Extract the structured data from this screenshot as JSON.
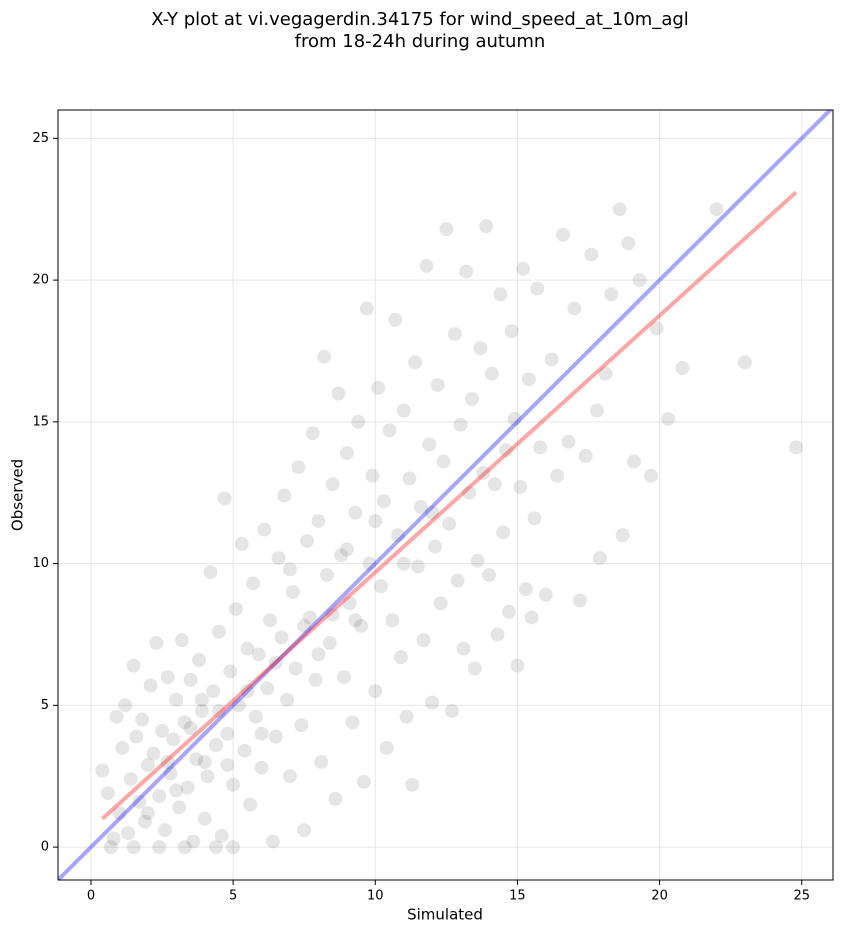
{
  "chart_data": {
    "type": "scatter",
    "title": [
      "X-Y plot at vi.vegagerdin.34175 for wind_speed_at_10m_agl",
      "from 18-24h during autumn"
    ],
    "xlabel": "Simulated",
    "ylabel": "Observed",
    "xlim": [
      -1.16,
      26.1
    ],
    "ylim": [
      -1.16,
      26.0
    ],
    "xticks": [
      0,
      5,
      10,
      15,
      20,
      25
    ],
    "yticks": [
      0,
      5,
      10,
      15,
      20,
      25
    ],
    "grid": true,
    "color": "#000000",
    "x": [
      0.4,
      0.6,
      0.8,
      0.9,
      1.0,
      1.1,
      1.2,
      1.3,
      1.4,
      1.5,
      1.6,
      1.7,
      1.8,
      1.9,
      2.0,
      2.1,
      2.2,
      2.3,
      2.4,
      2.5,
      2.6,
      2.7,
      2.8,
      2.9,
      3.0,
      3.1,
      3.2,
      3.3,
      3.4,
      3.5,
      3.6,
      3.7,
      3.8,
      3.9,
      4.0,
      4.1,
      4.2,
      4.3,
      4.4,
      4.5,
      4.6,
      4.7,
      4.8,
      4.9,
      5.0,
      5.1,
      5.2,
      5.3,
      5.4,
      5.5,
      5.6,
      5.7,
      5.8,
      5.9,
      6.0,
      6.1,
      6.2,
      6.3,
      6.4,
      6.5,
      6.6,
      6.7,
      6.8,
      6.9,
      7.0,
      7.1,
      7.2,
      7.3,
      7.4,
      7.5,
      7.6,
      7.7,
      7.8,
      7.9,
      8.0,
      8.1,
      8.2,
      8.3,
      8.4,
      8.5,
      8.6,
      8.7,
      8.8,
      8.9,
      9.0,
      9.1,
      9.2,
      9.3,
      9.4,
      9.5,
      9.6,
      9.7,
      9.8,
      9.9,
      10.0,
      10.1,
      10.2,
      10.3,
      10.4,
      10.5,
      10.6,
      10.7,
      10.8,
      10.9,
      11.0,
      11.1,
      11.2,
      11.3,
      11.4,
      11.5,
      11.6,
      11.7,
      11.8,
      11.9,
      12.0,
      12.1,
      12.2,
      12.3,
      12.4,
      12.5,
      12.6,
      12.7,
      12.8,
      12.9,
      13.0,
      13.1,
      13.2,
      13.3,
      13.4,
      13.5,
      13.6,
      13.7,
      13.8,
      13.9,
      14.0,
      14.1,
      14.2,
      14.3,
      14.4,
      14.5,
      14.6,
      14.7,
      14.8,
      14.9,
      15.0,
      15.1,
      15.2,
      15.3,
      15.4,
      15.5,
      15.6,
      15.7,
      15.8,
      16.0,
      16.2,
      16.4,
      16.6,
      16.8,
      17.0,
      17.2,
      17.4,
      17.6,
      17.8,
      17.9,
      18.1,
      18.3,
      18.6,
      18.7,
      18.9,
      19.1,
      19.3,
      19.7,
      19.9,
      20.3,
      20.8,
      22.0,
      23.0,
      24.8,
      0.7,
      1.5,
      2.4,
      3.3,
      4.4,
      5.0,
      2.0,
      3.0,
      4.0,
      3.5,
      4.5,
      5.5,
      6.5,
      7.5,
      8.5,
      9.3,
      2.7,
      3.9,
      4.8,
      6.0,
      7.0,
      8.0,
      9.0,
      10.0,
      11.0,
      12.0
    ],
    "y": [
      2.7,
      1.9,
      0.3,
      4.6,
      1.2,
      3.5,
      5.0,
      0.5,
      2.4,
      6.4,
      3.9,
      1.6,
      4.5,
      0.9,
      2.9,
      5.7,
      3.3,
      7.2,
      1.8,
      4.1,
      0.6,
      6.0,
      2.6,
      3.8,
      5.2,
      1.4,
      7.3,
      4.4,
      2.1,
      5.9,
      0.2,
      3.1,
      6.6,
      4.8,
      1.0,
      2.5,
      9.7,
      5.5,
      3.6,
      7.6,
      0.4,
      12.3,
      4.0,
      6.2,
      2.2,
      8.4,
      5.0,
      10.7,
      3.4,
      7.0,
      1.5,
      9.3,
      4.6,
      6.8,
      2.8,
      11.2,
      5.6,
      8.0,
      0.2,
      3.9,
      10.2,
      7.4,
      12.4,
      5.2,
      2.5,
      9.0,
      6.3,
      13.4,
      4.3,
      0.6,
      10.8,
      8.1,
      14.6,
      5.9,
      11.5,
      3.0,
      17.3,
      9.6,
      7.2,
      12.8,
      1.7,
      16.0,
      10.3,
      6.0,
      13.9,
      8.6,
      4.4,
      11.8,
      15.0,
      7.8,
      2.3,
      19.0,
      10.0,
      13.1,
      5.5,
      16.2,
      9.2,
      12.2,
      3.5,
      14.7,
      8.0,
      18.6,
      11.0,
      6.7,
      15.4,
      4.6,
      13.0,
      2.2,
      17.1,
      9.9,
      12.0,
      7.3,
      20.5,
      14.2,
      5.1,
      10.6,
      16.3,
      8.6,
      13.6,
      21.8,
      11.4,
      4.8,
      18.1,
      9.4,
      14.9,
      7.0,
      20.3,
      12.5,
      15.8,
      6.3,
      10.1,
      17.6,
      13.2,
      21.9,
      9.6,
      16.7,
      12.8,
      7.5,
      19.5,
      11.1,
      14.0,
      8.3,
      18.2,
      15.1,
      6.4,
      12.7,
      20.4,
      9.1,
      16.5,
      8.1,
      11.6,
      19.7,
      14.1,
      8.9,
      17.2,
      13.1,
      21.6,
      14.3,
      19.0,
      8.7,
      13.8,
      20.9,
      15.4,
      10.2,
      16.7,
      19.5,
      22.5,
      11.0,
      21.3,
      13.6,
      20.0,
      13.1,
      18.3,
      15.1,
      16.9,
      22.5,
      17.1,
      14.1,
      0,
      0,
      0,
      0,
      0,
      0,
      1.2,
      2.0,
      3.0,
      4.2,
      4.8,
      5.5,
      6.5,
      7.8,
      8.2,
      8.0,
      3.0,
      5.2,
      2.9,
      4.0,
      9.8,
      6.8,
      10.5,
      11.5,
      10.0,
      11.8
    ],
    "lines": [
      {
        "color": "#0000ff",
        "x": [
          -1.16,
          26.1
        ],
        "y": [
          -1.16,
          26.1
        ]
      },
      {
        "color": "#ff0000",
        "x": [
          0.4,
          24.8
        ],
        "y": [
          1.0,
          23.1
        ]
      }
    ]
  }
}
